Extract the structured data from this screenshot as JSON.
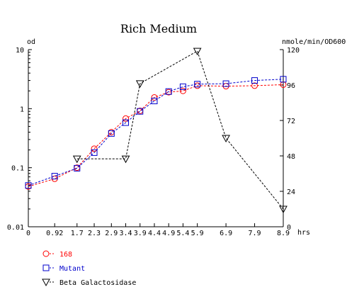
{
  "chart_data": {
    "type": "line",
    "title": "Rich Medium",
    "left_axis": {
      "unit_label": "od",
      "scale": "log",
      "ylim": [
        0.01,
        10
      ],
      "tick_labels": [
        "10",
        "1",
        "0.1",
        "0.01"
      ],
      "tick_values": [
        10,
        1,
        0.1,
        0.01
      ]
    },
    "right_axis": {
      "unit_label": "nmole/min/OD600",
      "scale": "linear",
      "ylim": [
        0,
        120
      ],
      "tick_labels": [
        "120",
        "96",
        "72",
        "48",
        "24",
        "0"
      ],
      "tick_values": [
        120,
        96,
        72,
        48,
        24,
        0
      ]
    },
    "x_axis": {
      "unit_label": "hrs",
      "xlim": [
        0,
        8.9
      ],
      "tick_values": [
        0,
        0.92,
        1.7,
        2.3,
        2.9,
        3.4,
        3.9,
        4.4,
        4.9,
        5.4,
        5.9,
        6.9,
        7.9,
        8.9
      ],
      "tick_labels": [
        "0",
        "0.92",
        "1.7",
        "2.3",
        "2.9",
        "3.4",
        "3.9",
        "4.4",
        "4.9",
        "5.4",
        "5.9",
        "6.9",
        "7.9",
        "8.9"
      ]
    },
    "series": [
      {
        "name": "168",
        "axis": "left",
        "marker": "circle",
        "color": "#ff0000",
        "points": [
          [
            0,
            0.048
          ],
          [
            0.92,
            0.065
          ],
          [
            1.7,
            0.1
          ],
          [
            2.3,
            0.21
          ],
          [
            2.9,
            0.4
          ],
          [
            3.4,
            0.68
          ],
          [
            3.9,
            0.92
          ],
          [
            4.4,
            1.55
          ],
          [
            4.9,
            1.9
          ],
          [
            5.4,
            2.0
          ],
          [
            5.9,
            2.45
          ],
          [
            6.9,
            2.4
          ],
          [
            7.9,
            2.45
          ],
          [
            8.9,
            2.55
          ]
        ]
      },
      {
        "name": "Mutant",
        "axis": "left",
        "marker": "square",
        "color": "#0000cc",
        "points": [
          [
            0,
            0.05
          ],
          [
            0.92,
            0.072
          ],
          [
            1.7,
            0.098
          ],
          [
            2.3,
            0.18
          ],
          [
            2.9,
            0.38
          ],
          [
            3.4,
            0.58
          ],
          [
            3.9,
            0.9
          ],
          [
            4.4,
            1.35
          ],
          [
            4.9,
            1.95
          ],
          [
            5.4,
            2.35
          ],
          [
            5.9,
            2.6
          ],
          [
            6.9,
            2.65
          ],
          [
            7.9,
            3.0
          ],
          [
            8.9,
            3.15
          ]
        ]
      },
      {
        "name": "Beta Galactosidase",
        "axis": "right",
        "marker": "triangle-down",
        "color": "#000000",
        "points": [
          [
            1.7,
            46
          ],
          [
            3.4,
            46
          ],
          [
            3.9,
            97
          ],
          [
            5.9,
            119
          ],
          [
            6.9,
            60
          ],
          [
            8.9,
            12
          ]
        ]
      }
    ],
    "grid": false,
    "legend_position": "bottom-left"
  }
}
